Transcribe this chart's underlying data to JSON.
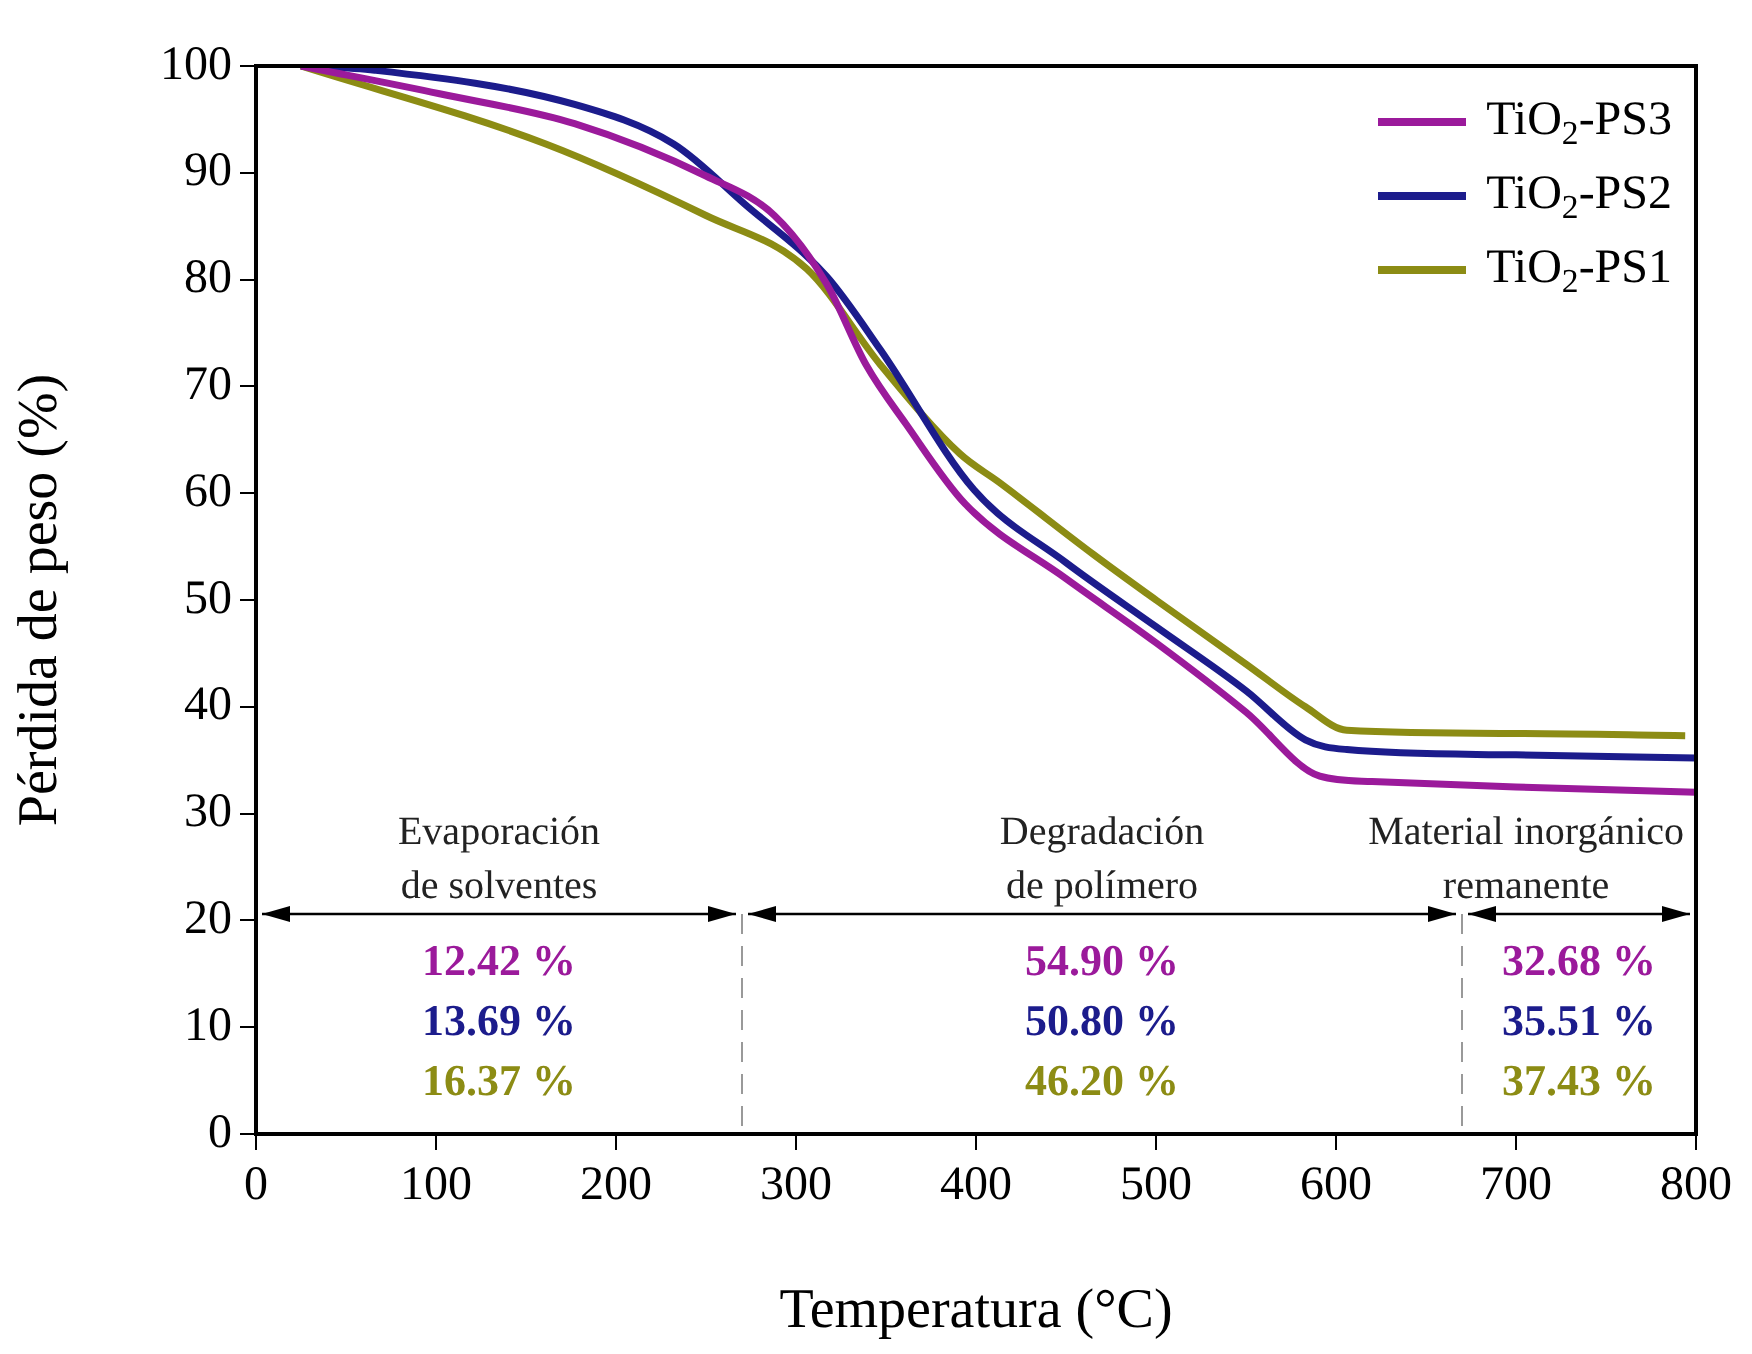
{
  "chart_data": {
    "type": "line",
    "xlabel": "Temperatura (°C)",
    "ylabel": "Pérdida de peso (%)",
    "xlim": [
      0,
      800
    ],
    "xticks": [
      0,
      100,
      200,
      300,
      400,
      500,
      600,
      700,
      800
    ],
    "ylim": [
      0,
      100
    ],
    "yticks": [
      0,
      10,
      20,
      30,
      40,
      50,
      60,
      70,
      80,
      90,
      100
    ],
    "grid": false,
    "legend": "top right",
    "marker": "none",
    "line_style": "solid",
    "series": [
      {
        "name": "TiO$_{2}$-PS3",
        "color": "#9b1a9b",
        "x": [
          25,
          102,
          177,
          250,
          288,
          317,
          339,
          361,
          394,
          450,
          500,
          550,
          591,
          620,
          700,
          800
        ],
        "values": [
          100,
          97.4,
          94.6,
          89.7,
          86,
          79.6,
          72,
          66.5,
          59,
          52,
          46,
          39.5,
          33.5,
          33,
          32.5,
          32
        ]
      },
      {
        "name": "TiO$_{2}$-PS2",
        "color": "#1c1c8c",
        "x": [
          25,
          66,
          177,
          232,
          272,
          317,
          347,
          399,
          450,
          500,
          550,
          583,
          606,
          700,
          800
        ],
        "values": [
          100,
          99.6,
          96.4,
          92.7,
          87,
          80.3,
          73.4,
          60.3,
          53.5,
          47.5,
          41.5,
          36.9,
          36,
          35.5,
          35.2
        ]
      },
      {
        "name": "TiO$_{2}$-PS1",
        "color": "#8c8c14",
        "x": [
          25,
          161,
          250,
          306,
          347,
          391,
          413,
          465,
          500,
          550,
          583,
          606,
          700,
          794
        ],
        "values": [
          100,
          92.7,
          86,
          81,
          72,
          63.7,
          61,
          54.3,
          50,
          44,
          40,
          37.8,
          37.5,
          37.3
        ]
      }
    ],
    "ref_lines": [
      {
        "axis": "x",
        "value": 270,
        "color": "#999999",
        "line_style": "dashed"
      },
      {
        "axis": "x",
        "value": 670,
        "color": "#999999",
        "line_style": "dashed"
      }
    ],
    "annotations": [
      "Evaporación\nde solventes",
      "12.42 %",
      "13.69 %",
      "16.37 %",
      "Degradación\nde polímero",
      "54.90 %",
      "50.80 %",
      "46.20 %",
      "Material inorgánico\nremanente",
      "32.68 %",
      "35.51 %",
      "37.43 %"
    ]
  }
}
